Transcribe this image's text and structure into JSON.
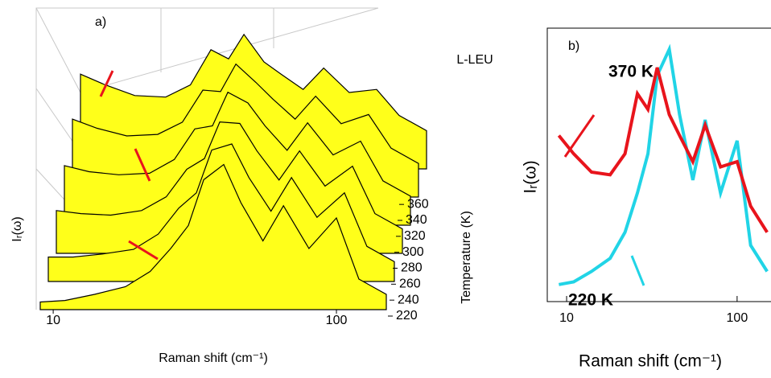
{
  "chart_data": [
    {
      "type": "waterfall3d",
      "label": "a)",
      "annotation": "L-LEU",
      "xlabel": "Raman shift (cm⁻¹)",
      "ylabel": "Iᵣ(ω)",
      "zlabel": "Temperature (K)",
      "log_x": true,
      "xlim": [
        9,
        150
      ],
      "xticks": [
        10,
        100
      ],
      "ylim": [
        0,
        1
      ],
      "zlim": [
        220,
        370
      ],
      "zticks": [
        220,
        240,
        260,
        280,
        300,
        320,
        340,
        360
      ],
      "color": "#ffff1a",
      "line_color": "#000000",
      "x": [
        9,
        11,
        14,
        18,
        22,
        26,
        30,
        34,
        40,
        46,
        55,
        65,
        80,
        100,
        120,
        150
      ],
      "series": [
        {
          "z": 370,
          "values": [
            0.62,
            0.55,
            0.48,
            0.47,
            0.55,
            0.78,
            0.72,
            0.88,
            0.7,
            0.62,
            0.52,
            0.66,
            0.5,
            0.52,
            0.35,
            0.25
          ]
        },
        {
          "z": 340,
          "values": [
            0.51,
            0.45,
            0.4,
            0.41,
            0.49,
            0.7,
            0.69,
            0.87,
            0.75,
            0.64,
            0.51,
            0.66,
            0.48,
            0.54,
            0.32,
            0.22
          ]
        },
        {
          "z": 310,
          "values": [
            0.39,
            0.35,
            0.33,
            0.34,
            0.43,
            0.63,
            0.65,
            0.87,
            0.8,
            0.65,
            0.49,
            0.67,
            0.46,
            0.55,
            0.29,
            0.19
          ]
        },
        {
          "z": 280,
          "values": [
            0.28,
            0.26,
            0.25,
            0.28,
            0.37,
            0.55,
            0.62,
            0.86,
            0.85,
            0.67,
            0.48,
            0.67,
            0.44,
            0.57,
            0.26,
            0.16
          ]
        },
        {
          "z": 250,
          "values": [
            0.16,
            0.16,
            0.18,
            0.21,
            0.31,
            0.48,
            0.58,
            0.86,
            0.9,
            0.68,
            0.46,
            0.68,
            0.42,
            0.58,
            0.23,
            0.13
          ]
        },
        {
          "z": 220,
          "values": [
            0.05,
            0.06,
            0.1,
            0.15,
            0.25,
            0.4,
            0.55,
            0.85,
            0.95,
            0.7,
            0.45,
            0.68,
            0.4,
            0.6,
            0.2,
            0.1
          ]
        }
      ]
    },
    {
      "type": "line",
      "label": "b)",
      "xlabel": "Raman shift (cm⁻¹)",
      "ylabel": "Iᵣ(ω)",
      "log_x": true,
      "xlim": [
        7.7,
        180
      ],
      "xticks": [
        10,
        100
      ],
      "ylim": [
        0,
        1
      ],
      "x": [
        9,
        11,
        14,
        18,
        22,
        26,
        30,
        34,
        40,
        46,
        55,
        65,
        80,
        100,
        120,
        150
      ],
      "series": [
        {
          "name": "370 K",
          "color": "#e8141c",
          "values": [
            0.62,
            0.55,
            0.48,
            0.47,
            0.55,
            0.78,
            0.72,
            0.88,
            0.7,
            0.62,
            0.52,
            0.66,
            0.5,
            0.52,
            0.35,
            0.25
          ]
        },
        {
          "name": "220 K",
          "color": "#21d4e6",
          "values": [
            0.05,
            0.06,
            0.1,
            0.15,
            0.25,
            0.4,
            0.55,
            0.85,
            0.95,
            0.7,
            0.45,
            0.68,
            0.4,
            0.6,
            0.2,
            0.1
          ]
        }
      ]
    }
  ]
}
